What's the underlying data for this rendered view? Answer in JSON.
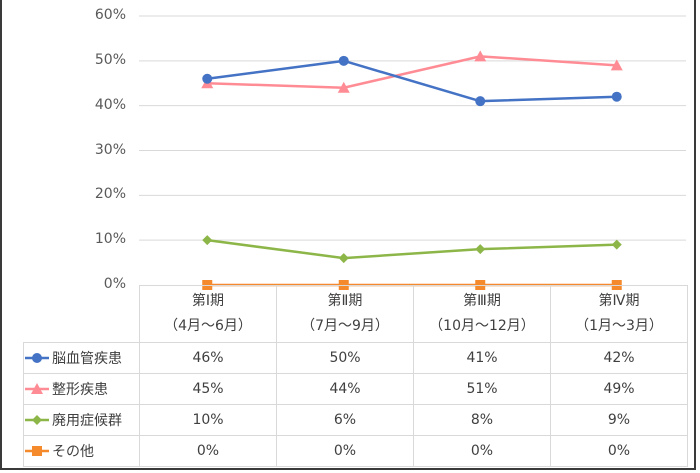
{
  "chart_data": {
    "type": "line",
    "title": "",
    "xlabel": "",
    "ylabel": "",
    "ylim": [
      0,
      0.6
    ],
    "y_ticks": [
      "0%",
      "10%",
      "20%",
      "30%",
      "40%",
      "50%",
      "60%"
    ],
    "grid": true,
    "legend_position": "data-table",
    "categories": [
      {
        "line1": "第Ⅰ期",
        "line2": "（4月〜6月）"
      },
      {
        "line1": "第Ⅱ期",
        "line2": "（7月〜9月）"
      },
      {
        "line1": "第Ⅲ期",
        "line2": "（10月〜12月）"
      },
      {
        "line1": "第Ⅳ期",
        "line2": "（1月〜3月）"
      }
    ],
    "series": [
      {
        "name": "脳血管疾患",
        "color": "#4472C4",
        "marker": "circle",
        "values": [
          46,
          50,
          41,
          42
        ],
        "labels": [
          "46%",
          "50%",
          "41%",
          "42%"
        ]
      },
      {
        "name": "整形疾患",
        "color": "#FF8C94",
        "marker": "triangle",
        "values": [
          45,
          44,
          51,
          49
        ],
        "labels": [
          "45%",
          "44%",
          "51%",
          "49%"
        ]
      },
      {
        "name": "廃用症候群",
        "color": "#8DB649",
        "marker": "diamond",
        "values": [
          10,
          6,
          8,
          9
        ],
        "labels": [
          "10%",
          "6%",
          "8%",
          "9%"
        ]
      },
      {
        "name": "その他",
        "color": "#F58A2C",
        "marker": "square",
        "values": [
          0,
          0,
          0,
          0
        ],
        "labels": [
          "0%",
          "0%",
          "0%",
          "0%"
        ]
      }
    ]
  }
}
